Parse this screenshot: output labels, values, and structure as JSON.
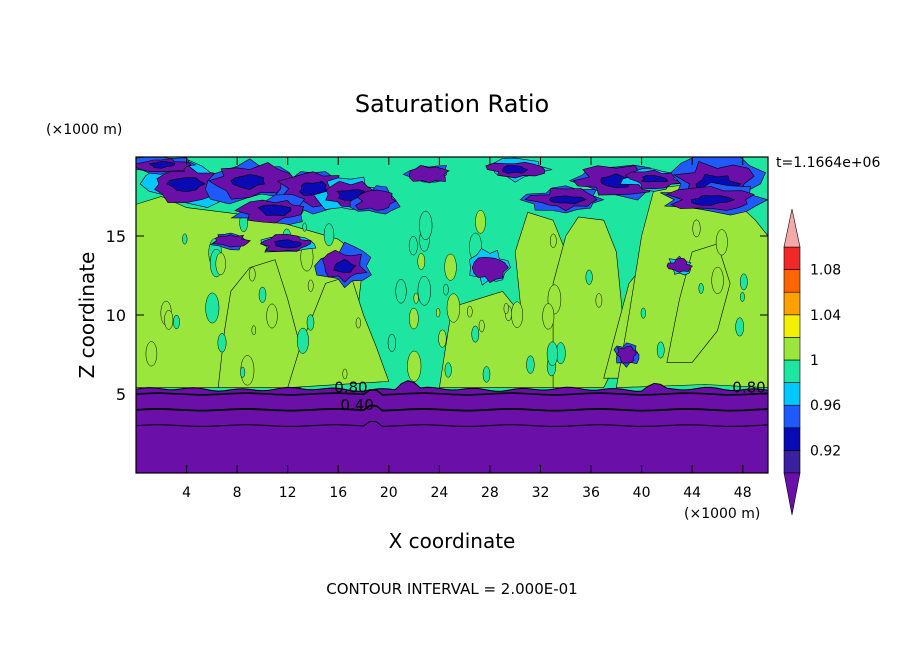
{
  "chart_data": {
    "type": "heatmap",
    "title": "Saturation Ratio",
    "xlabel": "X coordinate",
    "ylabel": "Z coordinate",
    "x_unit": "(×1000 m)",
    "y_unit": "(×1000 m)",
    "time_label": "t=1.1664e+06",
    "footer": "CONTOUR INTERVAL = 2.000E-01",
    "xlim": [
      0,
      50
    ],
    "ylim": [
      0,
      20
    ],
    "x_ticks": [
      4,
      8,
      12,
      16,
      20,
      24,
      28,
      32,
      36,
      40,
      44,
      48
    ],
    "y_ticks": [
      5,
      10,
      15
    ],
    "colorbar": {
      "levels": [
        0.9,
        0.92,
        0.94,
        0.96,
        0.98,
        1.0,
        1.02,
        1.04,
        1.06,
        1.08,
        1.1
      ],
      "tick_labels": [
        "0.92",
        "0.96",
        "1",
        "1.04",
        "1.08"
      ],
      "tick_values": [
        0.92,
        0.96,
        1.0,
        1.04,
        1.08
      ],
      "colors": [
        "#3a1f9e",
        "#0a0ab4",
        "#1e5aff",
        "#00c8ff",
        "#1ee6a0",
        "#9ae63c",
        "#f0f000",
        "#ffa000",
        "#ff6400",
        "#f02828"
      ],
      "under_color": "#6a0fa8",
      "over_color": "#f4a8a8"
    },
    "contour_labels": [
      {
        "text": "0.80",
        "x": 17.0,
        "y": 5.1
      },
      {
        "text": "0.40",
        "x": 17.5,
        "y": 4.0
      },
      {
        "text": "0.80",
        "x": 48.5,
        "y": 5.1
      }
    ],
    "layers": [
      {
        "name": "low",
        "color": "#6a0fa8",
        "z_top": 5.3
      },
      {
        "name": "mid",
        "color": "#1ee6a0",
        "z_top": 20
      }
    ]
  }
}
